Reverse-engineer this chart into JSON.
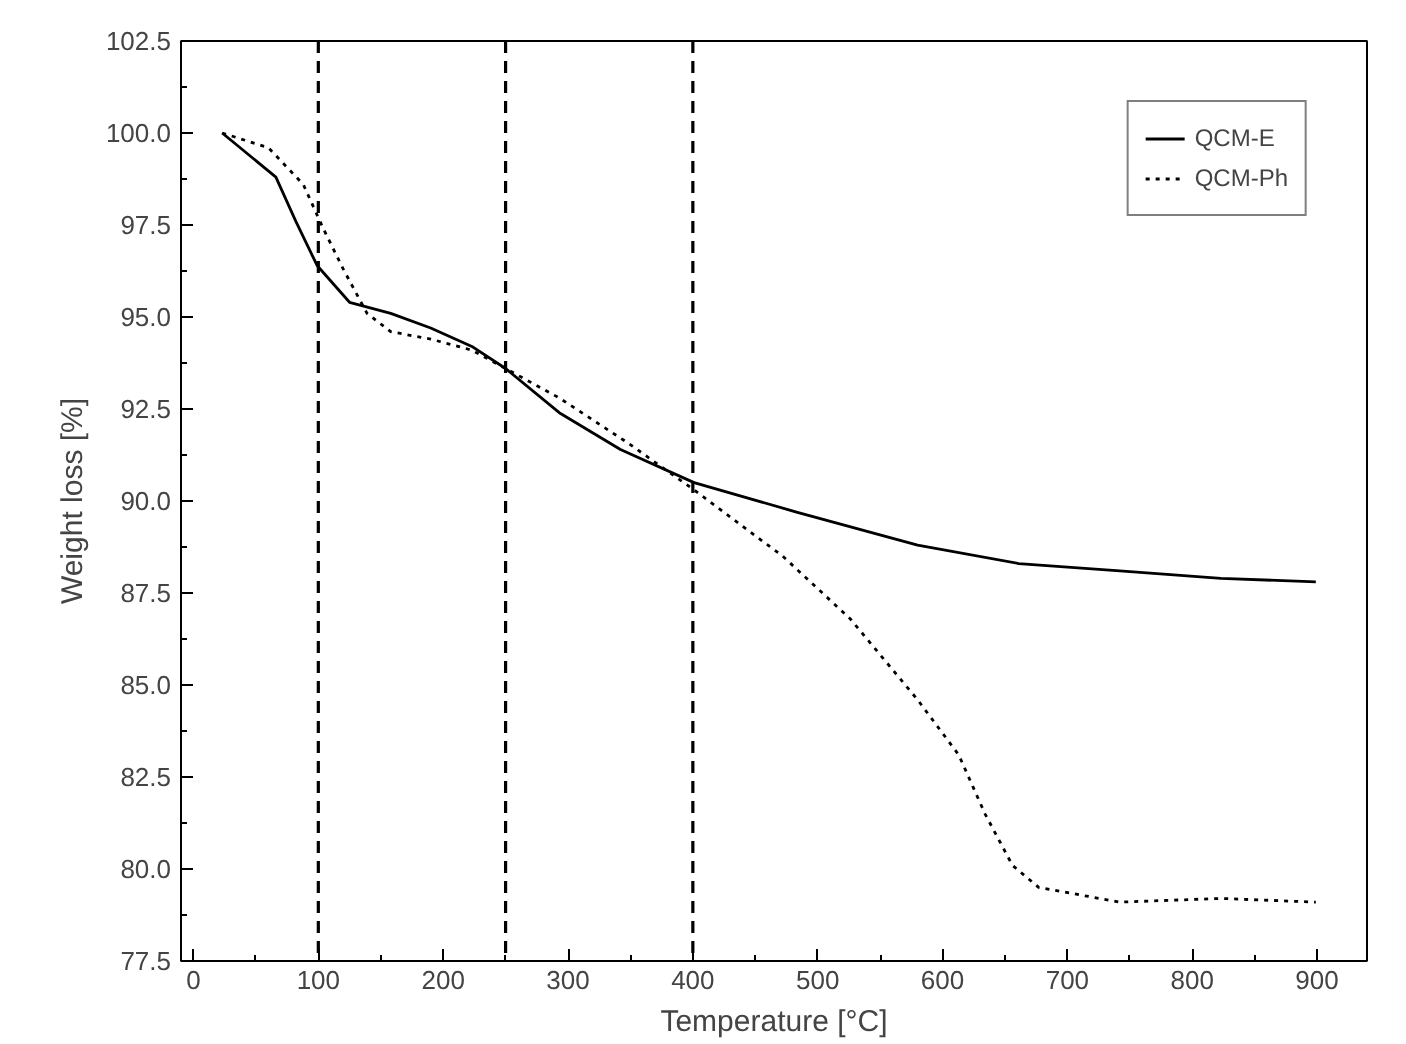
{
  "chart_data": {
    "type": "line",
    "xlabel": "Temperature [°C]",
    "ylabel": "Weight loss [%]",
    "xlim": [
      -10,
      940
    ],
    "ylim": [
      77.5,
      102.5
    ],
    "xticks": [
      0,
      100,
      200,
      300,
      400,
      500,
      600,
      700,
      800,
      900
    ],
    "yticks": [
      77.5,
      {
        "value": 80,
        "label": "80.0"
      },
      82.5,
      {
        "value": 85,
        "label": "85.0"
      },
      87.5,
      {
        "value": 90,
        "label": "90.0"
      },
      92.5,
      {
        "value": 95,
        "label": "95.0"
      },
      97.5,
      {
        "value": 100,
        "label": "100.0"
      },
      102.5
    ],
    "grid": false,
    "legend": "top right",
    "series": [
      {
        "name": "QCM-E",
        "color": "#000000",
        "line_style": "solid",
        "x": [
          23,
          66,
          82,
          99,
          125,
          158,
          190,
          223,
          250,
          293,
          342,
          401,
          483,
          580,
          661,
          742,
          823,
          899
        ],
        "values": [
          100.0,
          98.8,
          97.6,
          96.4,
          95.4,
          95.1,
          94.7,
          94.2,
          93.6,
          92.4,
          91.4,
          90.5,
          89.7,
          88.8,
          88.3,
          88.1,
          87.9,
          87.8
        ]
      },
      {
        "name": "QCM-Ph",
        "color": "#000000",
        "line_style": "dotted",
        "x": [
          23,
          60,
          88,
          104,
          120,
          139,
          158,
          190,
          223,
          250,
          293,
          347,
          401,
          472,
          526,
          580,
          613,
          634,
          656,
          677,
          742,
          823,
          899
        ],
        "values": [
          100.0,
          99.6,
          98.6,
          97.4,
          96.3,
          95.1,
          94.6,
          94.4,
          94.1,
          93.6,
          92.8,
          91.6,
          90.3,
          88.5,
          86.8,
          84.6,
          83.1,
          81.5,
          80.1,
          79.5,
          79.1,
          79.2,
          79.1
        ]
      }
    ],
    "ref_lines": [
      {
        "axis": "x",
        "value": 100,
        "color": "#000000",
        "line_style": "dashed"
      },
      {
        "axis": "x",
        "value": 250,
        "color": "#000000",
        "line_style": "dashed"
      },
      {
        "axis": "x",
        "value": 400,
        "color": "#000000",
        "line_style": "dashed"
      }
    ]
  }
}
